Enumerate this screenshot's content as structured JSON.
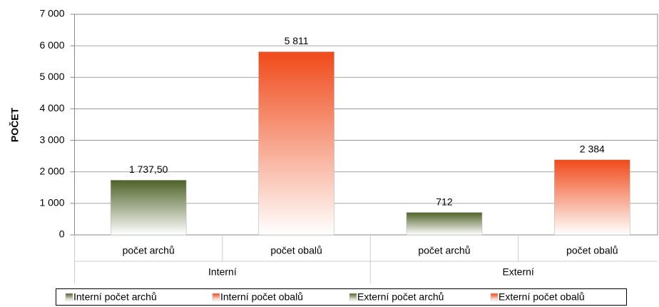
{
  "chart_data": {
    "type": "bar",
    "y_label": "POČET",
    "categories": [
      "počet archů",
      "počet obalů",
      "počet archů",
      "počet obalů"
    ],
    "groups": [
      {
        "label": "Interní",
        "span": 2
      },
      {
        "label": "Externí",
        "span": 2
      }
    ],
    "series": [
      {
        "name": "Interní počet archů",
        "color": "#4f6228",
        "values": [
          1737.5,
          null,
          null,
          null
        ],
        "value_labels": [
          "1 737,50",
          null,
          null,
          null
        ]
      },
      {
        "name": "Interní počet obalů",
        "color": "#f04a1a",
        "values": [
          null,
          5811,
          null,
          null
        ],
        "value_labels": [
          null,
          "5 811",
          null,
          null
        ]
      },
      {
        "name": "Externí počet archů",
        "color": "#4f6228",
        "values": [
          null,
          null,
          712,
          null
        ],
        "value_labels": [
          null,
          null,
          "712",
          null
        ]
      },
      {
        "name": "Externí počet obalů",
        "color": "#f04a1a",
        "values": [
          null,
          null,
          null,
          2384
        ],
        "value_labels": [
          null,
          null,
          null,
          "2 384"
        ]
      }
    ],
    "ylim": [
      0,
      7000
    ],
    "yticks": [
      0,
      {
        "value": 1000,
        "label": "1 000"
      },
      {
        "value": 2000,
        "label": "2 000"
      },
      {
        "value": 3000,
        "label": "3 000"
      },
      {
        "value": 4000,
        "label": "4 000"
      },
      {
        "value": 5000,
        "label": "5 000"
      },
      {
        "value": 6000,
        "label": "6 000"
      },
      {
        "value": 7000,
        "label": "7 000"
      }
    ],
    "grid": true,
    "legend": "bottom"
  }
}
